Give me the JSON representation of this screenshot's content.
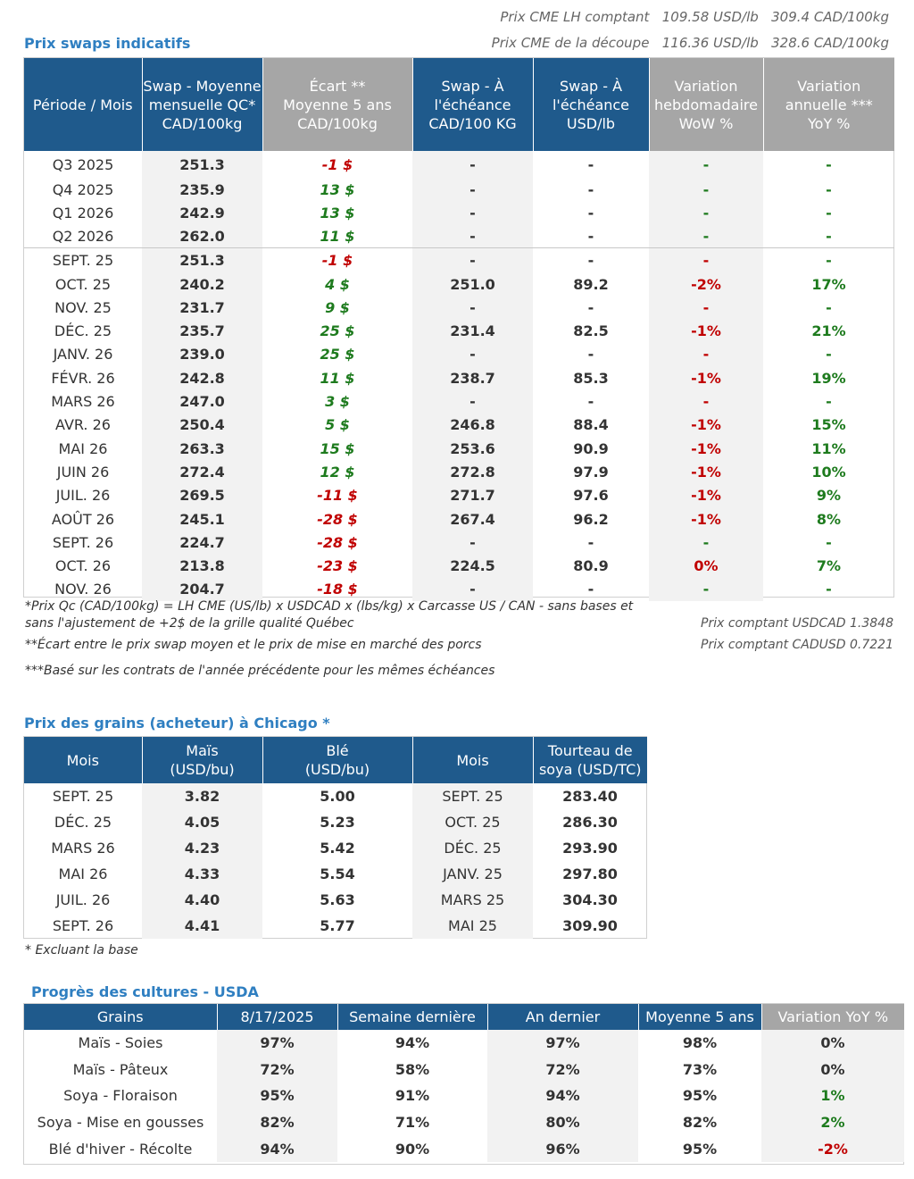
{
  "header": {
    "cme_lh_label": "Prix CME LH comptant",
    "cme_lh_usd": "109.58 USD/lb",
    "cme_lh_cad": "309.4 CAD/100kg",
    "cme_cut_label": "Prix CME de la découpe",
    "cme_cut_usd": "116.36 USD/lb",
    "cme_cut_cad": "328.6 CAD/100kg"
  },
  "swaps": {
    "title": "Prix swaps indicatifs",
    "headers": [
      "Période / Mois",
      "Swap - Moyenne mensuelle QC* CAD/100kg",
      "Écart ** Moyenne 5 ans CAD/100kg",
      "Swap - À l'échéance CAD/100 KG",
      "Swap - À l'échéance USD/lb",
      "Variation hebdomadaire WoW %",
      "Variation annuelle *** YoY %"
    ],
    "rows": [
      {
        "p": "Q3 2025",
        "s": "251.3",
        "e": "-1 $",
        "es": "neg",
        "c": "-",
        "u": "-",
        "w": "-",
        "ws": "pos",
        "y": "-",
        "ys": "pos"
      },
      {
        "p": "Q4 2025",
        "s": "235.9",
        "e": "13 $",
        "es": "pos",
        "c": "-",
        "u": "-",
        "w": "-",
        "ws": "pos",
        "y": "-",
        "ys": "pos"
      },
      {
        "p": "Q1 2026",
        "s": "242.9",
        "e": "13 $",
        "es": "pos",
        "c": "-",
        "u": "-",
        "w": "-",
        "ws": "pos",
        "y": "-",
        "ys": "pos"
      },
      {
        "p": "Q2 2026",
        "s": "262.0",
        "e": "11 $",
        "es": "pos",
        "c": "-",
        "u": "-",
        "w": "-",
        "ws": "pos",
        "y": "-",
        "ys": "pos"
      },
      {
        "p": "SEPT. 25",
        "s": "251.3",
        "e": "-1 $",
        "es": "neg",
        "c": "-",
        "u": "-",
        "w": "-",
        "ws": "neg",
        "y": "-",
        "ys": "pos"
      },
      {
        "p": "OCT. 25",
        "s": "240.2",
        "e": "4 $",
        "es": "pos",
        "c": "251.0",
        "u": "89.2",
        "w": "-2%",
        "ws": "neg",
        "y": "17%",
        "ys": "pos"
      },
      {
        "p": "NOV. 25",
        "s": "231.7",
        "e": "9 $",
        "es": "pos",
        "c": "-",
        "u": "-",
        "w": "-",
        "ws": "neg",
        "y": "-",
        "ys": "pos"
      },
      {
        "p": "DÉC. 25",
        "s": "235.7",
        "e": "25 $",
        "es": "pos",
        "c": "231.4",
        "u": "82.5",
        "w": "-1%",
        "ws": "neg",
        "y": "21%",
        "ys": "pos"
      },
      {
        "p": "JANV. 26",
        "s": "239.0",
        "e": "25 $",
        "es": "pos",
        "c": "-",
        "u": "-",
        "w": "-",
        "ws": "neg",
        "y": "-",
        "ys": "pos"
      },
      {
        "p": "FÉVR. 26",
        "s": "242.8",
        "e": "11 $",
        "es": "pos",
        "c": "238.7",
        "u": "85.3",
        "w": "-1%",
        "ws": "neg",
        "y": "19%",
        "ys": "pos"
      },
      {
        "p": "MARS 26",
        "s": "247.0",
        "e": "3 $",
        "es": "pos",
        "c": "-",
        "u": "-",
        "w": "-",
        "ws": "neg",
        "y": "-",
        "ys": "pos"
      },
      {
        "p": "AVR. 26",
        "s": "250.4",
        "e": "5 $",
        "es": "pos",
        "c": "246.8",
        "u": "88.4",
        "w": "-1%",
        "ws": "neg",
        "y": "15%",
        "ys": "pos"
      },
      {
        "p": "MAI 26",
        "s": "263.3",
        "e": "15 $",
        "es": "pos",
        "c": "253.6",
        "u": "90.9",
        "w": "-1%",
        "ws": "neg",
        "y": "11%",
        "ys": "pos"
      },
      {
        "p": "JUIN 26",
        "s": "272.4",
        "e": "12 $",
        "es": "pos",
        "c": "272.8",
        "u": "97.9",
        "w": "-1%",
        "ws": "neg",
        "y": "10%",
        "ys": "pos"
      },
      {
        "p": "JUIL. 26",
        "s": "269.5",
        "e": "-11 $",
        "es": "neg",
        "c": "271.7",
        "u": "97.6",
        "w": "-1%",
        "ws": "neg",
        "y": "9%",
        "ys": "pos"
      },
      {
        "p": "AOÛT 26",
        "s": "245.1",
        "e": "-28 $",
        "es": "neg",
        "c": "267.4",
        "u": "96.2",
        "w": "-1%",
        "ws": "neg",
        "y": "8%",
        "ys": "pos"
      },
      {
        "p": "SEPT. 26",
        "s": "224.7",
        "e": "-28 $",
        "es": "neg",
        "c": "-",
        "u": "-",
        "w": "-",
        "ws": "pos",
        "y": "-",
        "ys": "pos"
      },
      {
        "p": "OCT. 26",
        "s": "213.8",
        "e": "-23 $",
        "es": "neg",
        "c": "224.5",
        "u": "80.9",
        "w": "0%",
        "ws": "neg",
        "y": "7%",
        "ys": "pos"
      },
      {
        "p": "NOV. 26",
        "s": "204.7",
        "e": "-18 $",
        "es": "neg",
        "c": "-",
        "u": "-",
        "w": "-",
        "ws": "pos",
        "y": "-",
        "ys": "pos"
      }
    ],
    "note1a": "*Prix Qc (CAD/100kg) = LH CME (US/lb) x USDCAD x (lbs/kg) x Carcasse US / CAN - sans bases et",
    "note1b": "sans l'ajustement de +2$ de la grille qualité Québec",
    "note2": "**Écart entre le prix swap moyen et le prix de mise en marché des porcs",
    "note3": "***Basé sur les contrats de l'année précédente pour les mêmes échéances",
    "fx1": "Prix comptant USDCAD 1.3848",
    "fx2": "Prix comptant CADUSD 0.7221"
  },
  "grains": {
    "title": "Prix des grains (acheteur) à Chicago *",
    "headers": [
      "Mois",
      "Maïs (USD/bu)",
      "Blé (USD/bu)",
      "Mois",
      "Tourteau de soya (USD/TC)"
    ],
    "rows": [
      {
        "m1": "SEPT. 25",
        "mais": "3.82",
        "ble": "5.00",
        "m2": "SEPT. 25",
        "soya": "283.40"
      },
      {
        "m1": "DÉC. 25",
        "mais": "4.05",
        "ble": "5.23",
        "m2": "OCT. 25",
        "soya": "286.30"
      },
      {
        "m1": "MARS 26",
        "mais": "4.23",
        "ble": "5.42",
        "m2": "DÉC. 25",
        "soya": "293.90"
      },
      {
        "m1": "MAI 26",
        "mais": "4.33",
        "ble": "5.54",
        "m2": "JANV. 25",
        "soya": "297.80"
      },
      {
        "m1": "JUIL. 26",
        "mais": "4.40",
        "ble": "5.63",
        "m2": "MARS 25",
        "soya": "304.30"
      },
      {
        "m1": "SEPT. 26",
        "mais": "4.41",
        "ble": "5.77",
        "m2": "MAI 25",
        "soya": "309.90"
      }
    ],
    "note": "* Excluant la base"
  },
  "crops": {
    "title": "Progrès des cultures - USDA",
    "headers": [
      "Grains",
      "8/17/2025",
      "Semaine dernière",
      "An dernier",
      "Moyenne 5 ans",
      "Variation YoY %"
    ],
    "rows": [
      {
        "g": "Maïs - Soies",
        "d": "97%",
        "w": "94%",
        "y": "97%",
        "a": "98%",
        "v": "0%",
        "vs": "plain"
      },
      {
        "g": "Maïs - Pâteux",
        "d": "72%",
        "w": "58%",
        "y": "72%",
        "a": "73%",
        "v": "0%",
        "vs": "plain"
      },
      {
        "g": "Soya - Floraison",
        "d": "95%",
        "w": "91%",
        "y": "94%",
        "a": "95%",
        "v": "1%",
        "vs": "pos"
      },
      {
        "g": "Soya - Mise en gousses",
        "d": "82%",
        "w": "71%",
        "y": "80%",
        "a": "82%",
        "v": "2%",
        "vs": "pos"
      },
      {
        "g": "Blé d'hiver - Récolte",
        "d": "94%",
        "w": "90%",
        "y": "96%",
        "a": "95%",
        "v": "-2%",
        "vs": "neg"
      }
    ]
  },
  "colors": {
    "header_blue": "#1f5a8c",
    "header_gray": "#a6a6a6",
    "title_blue": "#2f7fc1",
    "negative": "#c00000",
    "positive": "#1e7b1e"
  }
}
